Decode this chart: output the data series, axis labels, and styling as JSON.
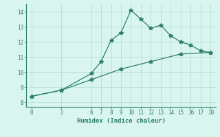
{
  "line1_x": [
    0,
    3,
    6,
    7,
    8,
    9,
    10,
    11,
    12,
    13,
    14,
    15,
    16,
    17,
    18
  ],
  "line1_y": [
    8.4,
    8.8,
    9.9,
    10.7,
    12.1,
    12.6,
    14.1,
    13.5,
    12.9,
    13.1,
    12.4,
    12.0,
    11.8,
    11.4,
    11.3
  ],
  "line2_x": [
    0,
    3,
    6,
    9,
    12,
    15,
    18
  ],
  "line2_y": [
    8.4,
    8.8,
    9.5,
    10.2,
    10.7,
    11.2,
    11.3
  ],
  "line_color": "#2e7d6e",
  "bg_color": "#d8f5ef",
  "grid_color": "#b8ddd6",
  "xlabel": "Humidex (Indice chaleur)",
  "xlim": [
    -0.5,
    18.5
  ],
  "ylim": [
    7.7,
    14.5
  ],
  "xticks": [
    0,
    3,
    6,
    7,
    8,
    9,
    10,
    11,
    12,
    13,
    14,
    15,
    16,
    17,
    18
  ],
  "yticks": [
    8,
    9,
    10,
    11,
    12,
    13,
    14
  ],
  "marker": "*",
  "markersize": 4,
  "linewidth": 0.9,
  "tick_fontsize": 5.5,
  "xlabel_fontsize": 6.5
}
